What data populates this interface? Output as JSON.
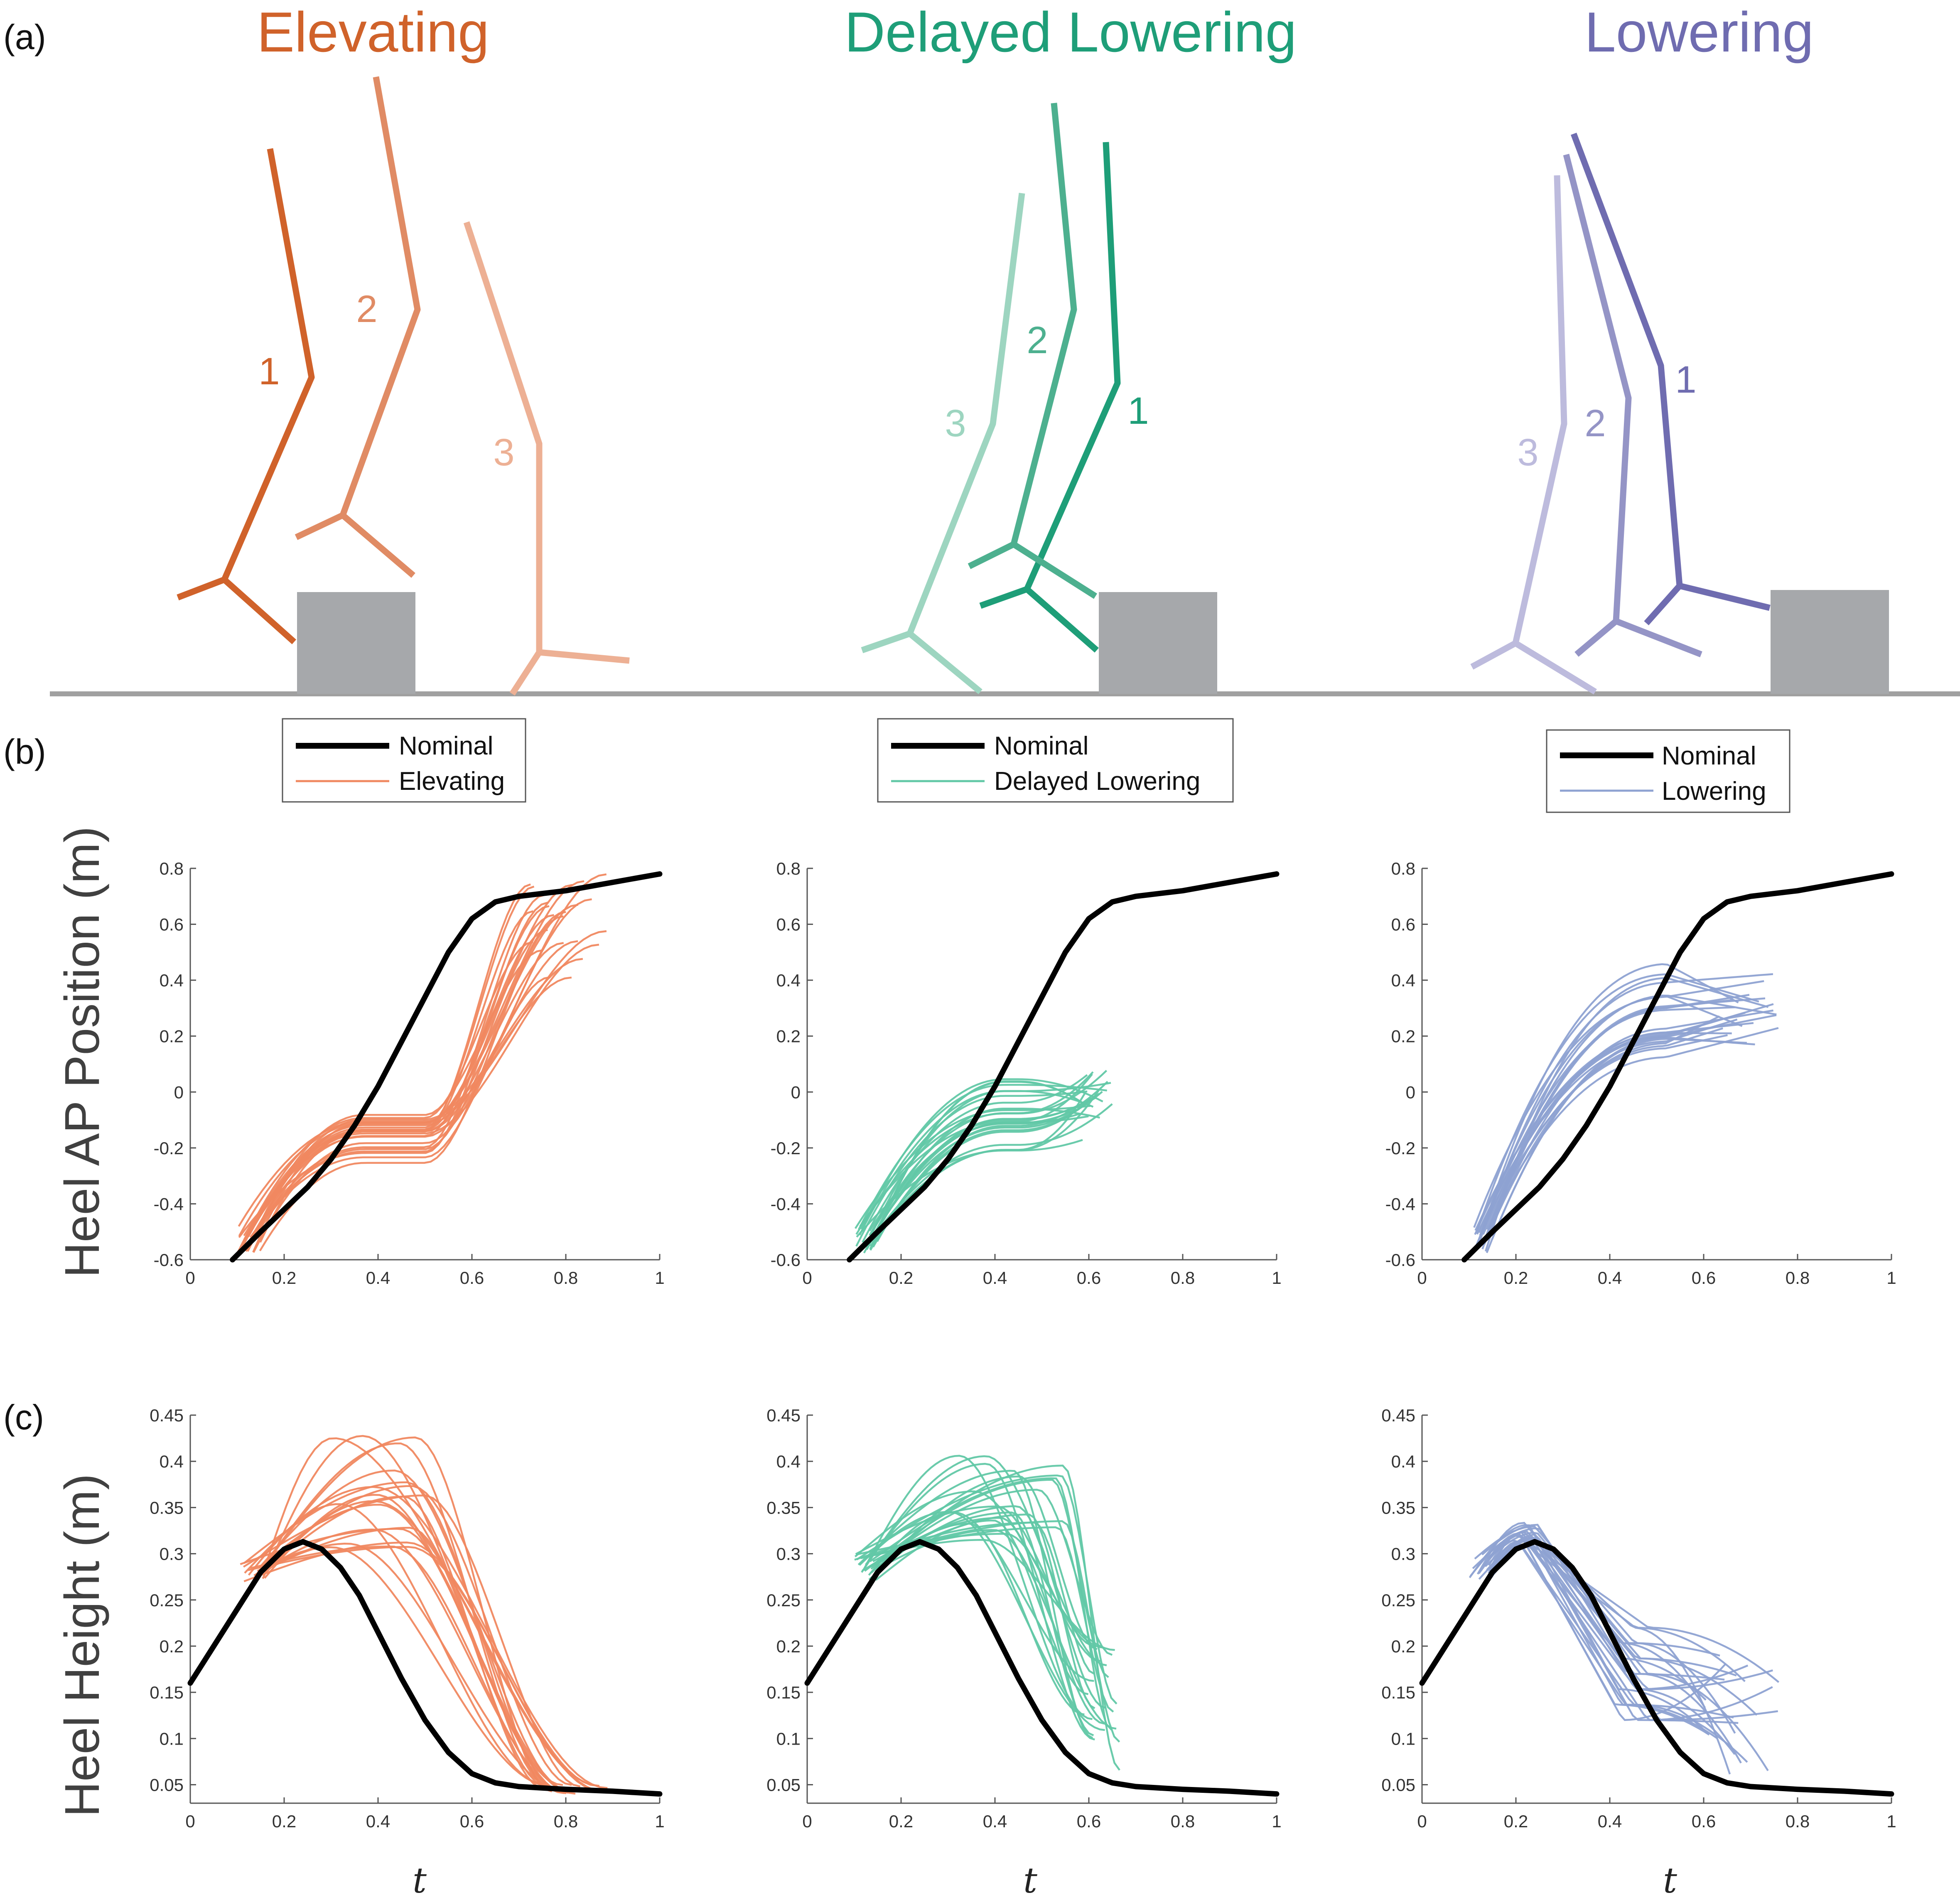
{
  "panel_labels": {
    "a": "(a)",
    "b": "(b)",
    "c": "(c)"
  },
  "colors": {
    "elevating_dark": "#D0622A",
    "elevating_light": "#F08860",
    "delayed_dark": "#1E9E78",
    "delayed_light": "#62C8A6",
    "lowering_dark": "#6F6CB0",
    "lowering_light": "#8EA2D2",
    "nominal": "#000000",
    "obstacle": "#A6A8AB",
    "ground": "#A0A0A0"
  },
  "conditions": [
    {
      "title": "Elevating",
      "legend_nominal": "Nominal",
      "legend_series": "Elevating",
      "stick_labels": [
        "1",
        "2",
        "3"
      ]
    },
    {
      "title": "Delayed Lowering",
      "legend_nominal": "Nominal",
      "legend_series": "Delayed Lowering",
      "stick_labels": [
        "2",
        "3",
        "1"
      ]
    },
    {
      "title": "Lowering",
      "legend_nominal": "Nominal",
      "legend_series": "Lowering",
      "stick_labels": [
        "1",
        "2",
        "3"
      ]
    }
  ],
  "row_b_ylabel": "Heel AP Position (m)",
  "row_c_ylabel": "Heel Height (m)",
  "xlabel": "t",
  "ticks": {
    "x": [
      "0",
      "0.2",
      "0.4",
      "0.6",
      "0.8",
      "1"
    ],
    "ap": [
      "-0.6",
      "-0.4",
      "-0.2",
      "0",
      "0.2",
      "0.4",
      "0.6",
      "0.8"
    ],
    "height": [
      "0.05",
      "0.1",
      "0.15",
      "0.2",
      "0.25",
      "0.3",
      "0.35",
      "0.4",
      "0.45"
    ]
  },
  "chart_data": [
    {
      "type": "line",
      "panel": "b",
      "condition": "Elevating",
      "xlim": [
        0,
        1
      ],
      "ylim": [
        -0.6,
        0.8
      ],
      "nominal": {
        "name": "Nominal",
        "x": [
          0.09,
          0.15,
          0.2,
          0.25,
          0.3,
          0.35,
          0.4,
          0.45,
          0.5,
          0.55,
          0.6,
          0.65,
          0.7,
          0.8,
          0.9,
          1.0
        ],
        "y": [
          -0.6,
          -0.5,
          -0.42,
          -0.34,
          -0.24,
          -0.12,
          0.02,
          0.18,
          0.34,
          0.5,
          0.62,
          0.68,
          0.7,
          0.72,
          0.75,
          0.78
        ]
      },
      "trials": {
        "name": "Elevating",
        "count": 24,
        "x_start": [
          0.1,
          0.15
        ],
        "x_end": [
          0.72,
          0.89
        ],
        "y_start": [
          -0.58,
          -0.48
        ],
        "y_plateau": [
          -0.26,
          -0.08
        ],
        "y_end": [
          0.4,
          0.78
        ]
      }
    },
    {
      "type": "line",
      "panel": "b",
      "condition": "Delayed Lowering",
      "xlim": [
        0,
        1
      ],
      "ylim": [
        -0.6,
        0.8
      ],
      "nominal": {
        "name": "Nominal",
        "x": [
          0.09,
          0.15,
          0.2,
          0.25,
          0.3,
          0.35,
          0.4,
          0.45,
          0.5,
          0.55,
          0.6,
          0.65,
          0.7,
          0.8,
          0.9,
          1.0
        ],
        "y": [
          -0.6,
          -0.5,
          -0.42,
          -0.34,
          -0.24,
          -0.12,
          0.02,
          0.18,
          0.34,
          0.5,
          0.62,
          0.68,
          0.7,
          0.72,
          0.75,
          0.78
        ]
      },
      "trials": {
        "name": "Delayed Lowering",
        "count": 26,
        "x_start": [
          0.1,
          0.15
        ],
        "x_end": [
          0.58,
          0.65
        ],
        "y_start": [
          -0.58,
          -0.48
        ],
        "y_plateau": [
          -0.22,
          0.06
        ],
        "y_end": [
          -0.15,
          0.2
        ]
      }
    },
    {
      "type": "line",
      "panel": "b",
      "condition": "Lowering",
      "xlim": [
        0,
        1
      ],
      "ylim": [
        -0.6,
        0.8
      ],
      "nominal": {
        "name": "Nominal",
        "x": [
          0.09,
          0.15,
          0.2,
          0.25,
          0.3,
          0.35,
          0.4,
          0.45,
          0.5,
          0.55,
          0.6,
          0.65,
          0.7,
          0.8,
          0.9,
          1.0
        ],
        "y": [
          -0.6,
          -0.5,
          -0.42,
          -0.34,
          -0.24,
          -0.12,
          0.02,
          0.18,
          0.34,
          0.5,
          0.62,
          0.68,
          0.7,
          0.72,
          0.75,
          0.78
        ]
      },
      "trials": {
        "name": "Lowering",
        "count": 24,
        "x_start": [
          0.1,
          0.15
        ],
        "x_end": [
          0.62,
          0.76
        ],
        "y_start": [
          -0.58,
          -0.48
        ],
        "y_plateau": [
          0.1,
          0.46
        ],
        "y_end": [
          0.1,
          0.46
        ]
      }
    },
    {
      "type": "line",
      "panel": "c",
      "condition": "Elevating",
      "xlim": [
        0,
        1
      ],
      "ylim": [
        0.03,
        0.45
      ],
      "nominal": {
        "name": "Nominal",
        "x": [
          0.0,
          0.05,
          0.1,
          0.15,
          0.2,
          0.24,
          0.28,
          0.32,
          0.36,
          0.4,
          0.45,
          0.5,
          0.55,
          0.6,
          0.65,
          0.7,
          0.8,
          0.9,
          1.0
        ],
        "y": [
          0.16,
          0.2,
          0.24,
          0.28,
          0.305,
          0.313,
          0.305,
          0.285,
          0.255,
          0.215,
          0.165,
          0.12,
          0.085,
          0.062,
          0.052,
          0.048,
          0.045,
          0.043,
          0.04
        ]
      },
      "trials": {
        "name": "Elevating",
        "count": 22,
        "x_start": [
          0.1,
          0.16
        ],
        "x_peak": [
          0.3,
          0.5
        ],
        "x_end": [
          0.75,
          0.9
        ],
        "y_start": [
          0.27,
          0.29
        ],
        "y_peak": [
          0.3,
          0.43
        ],
        "y_end": [
          0.04,
          0.05
        ]
      }
    },
    {
      "type": "line",
      "panel": "c",
      "condition": "Delayed Lowering",
      "xlim": [
        0,
        1
      ],
      "ylim": [
        0.03,
        0.45
      ],
      "nominal": {
        "name": "Nominal",
        "x": [
          0.0,
          0.05,
          0.1,
          0.15,
          0.2,
          0.24,
          0.28,
          0.32,
          0.36,
          0.4,
          0.45,
          0.5,
          0.55,
          0.6,
          0.65,
          0.7,
          0.8,
          0.9,
          1.0
        ],
        "y": [
          0.16,
          0.2,
          0.24,
          0.28,
          0.305,
          0.313,
          0.305,
          0.285,
          0.255,
          0.215,
          0.165,
          0.12,
          0.085,
          0.062,
          0.052,
          0.048,
          0.045,
          0.043,
          0.04
        ]
      },
      "trials": {
        "name": "Delayed Lowering",
        "count": 26,
        "x_start": [
          0.1,
          0.15
        ],
        "x_peak": [
          0.3,
          0.55
        ],
        "x_end": [
          0.58,
          0.66
        ],
        "y_start": [
          0.27,
          0.3
        ],
        "y_peak": [
          0.31,
          0.41
        ],
        "y_end": [
          0.06,
          0.2
        ]
      }
    },
    {
      "type": "line",
      "panel": "c",
      "condition": "Lowering",
      "xlim": [
        0,
        1
      ],
      "ylim": [
        0.03,
        0.45
      ],
      "nominal": {
        "name": "Nominal",
        "x": [
          0.0,
          0.05,
          0.1,
          0.15,
          0.2,
          0.24,
          0.28,
          0.32,
          0.36,
          0.4,
          0.45,
          0.5,
          0.55,
          0.6,
          0.65,
          0.7,
          0.8,
          0.9,
          1.0
        ],
        "y": [
          0.16,
          0.2,
          0.24,
          0.28,
          0.305,
          0.313,
          0.305,
          0.285,
          0.255,
          0.215,
          0.165,
          0.12,
          0.085,
          0.062,
          0.052,
          0.048,
          0.045,
          0.043,
          0.04
        ]
      },
      "trials": {
        "name": "Lowering",
        "count": 24,
        "x_start": [
          0.1,
          0.15
        ],
        "x_peak": [
          0.2,
          0.25
        ],
        "x_end": [
          0.6,
          0.76
        ],
        "y_start": [
          0.27,
          0.3
        ],
        "y_peak": [
          0.31,
          0.335
        ],
        "y_end": [
          0.06,
          0.2
        ]
      }
    }
  ]
}
